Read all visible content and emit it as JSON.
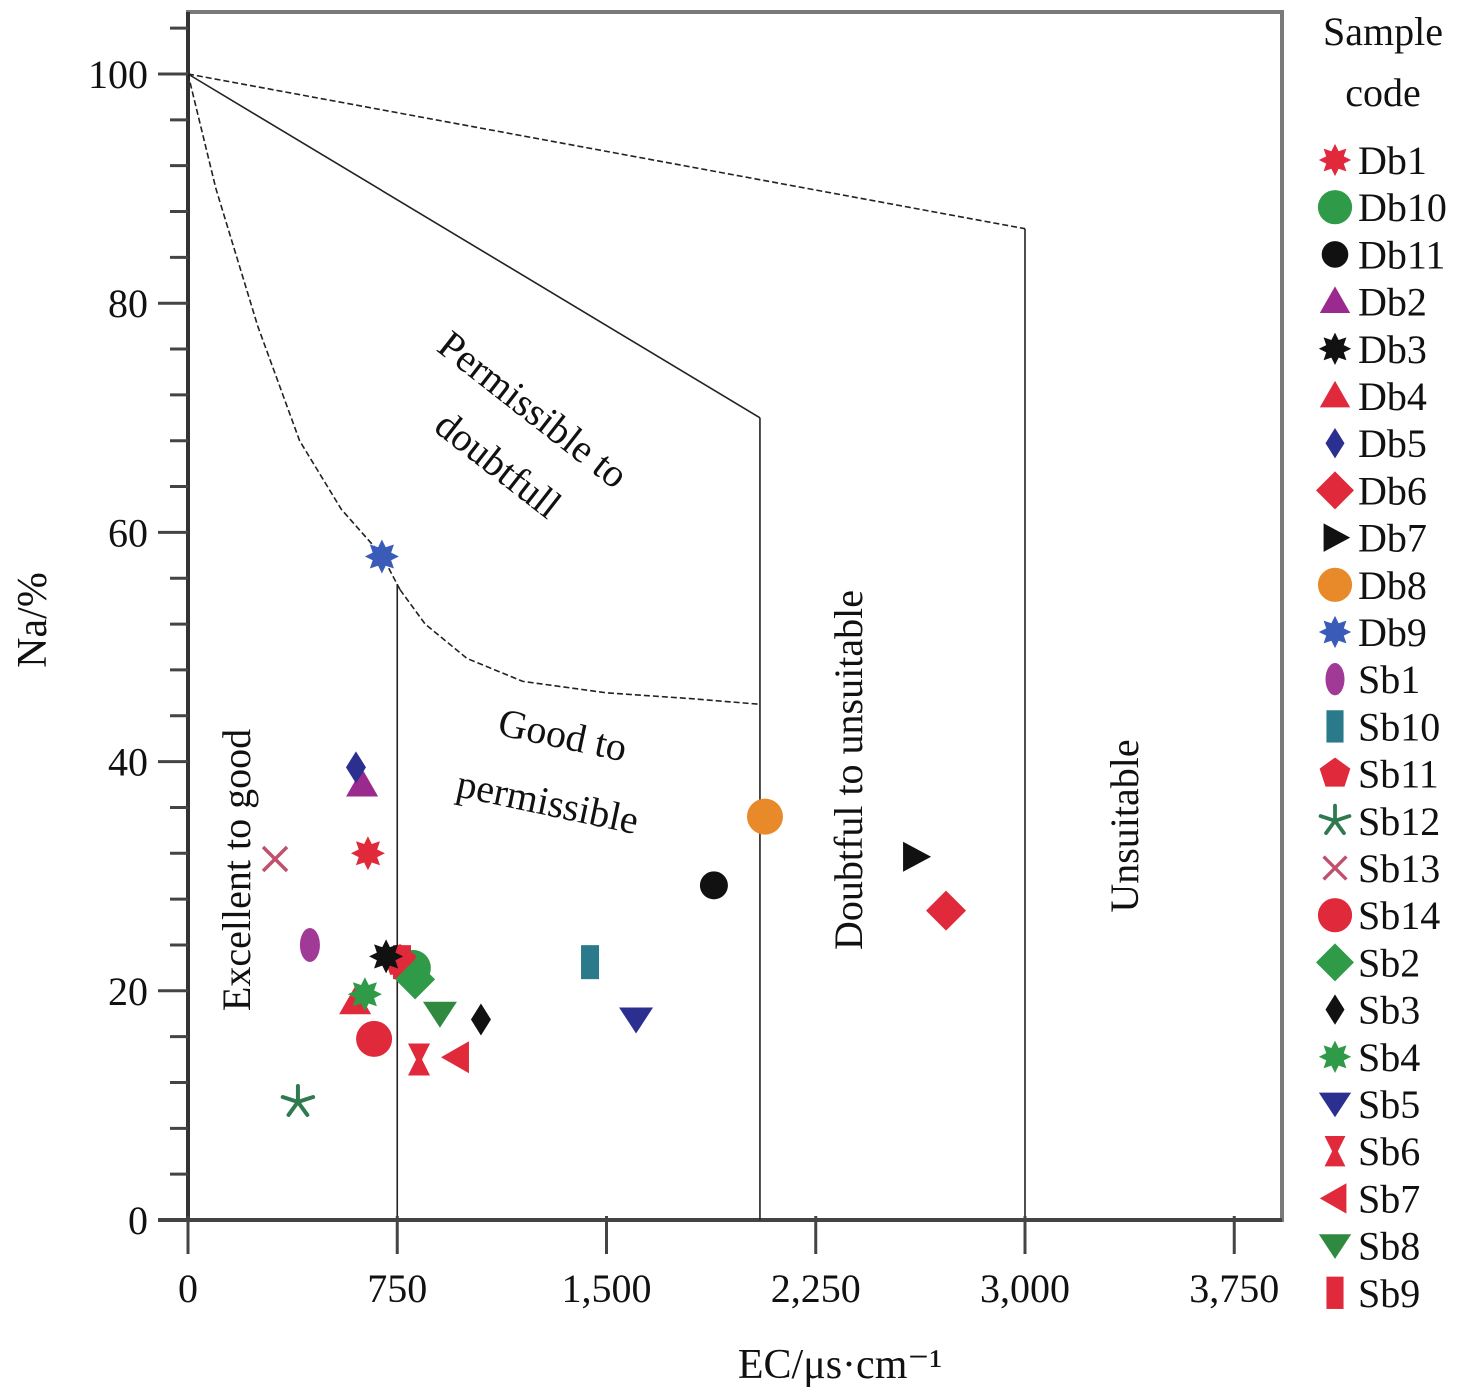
{
  "chart_data": {
    "type": "scatter",
    "title": "",
    "xlabel": "EC/μs·cm⁻¹",
    "ylabel": "Na/%",
    "xlim": [
      0,
      3900
    ],
    "ylim": [
      0,
      105
    ],
    "x_ticks": [
      {
        "value": 0,
        "label": "0"
      },
      {
        "value": 750,
        "label": "750"
      },
      {
        "value": 1500,
        "label": "1,500"
      },
      {
        "value": 2250,
        "label": "2,250"
      },
      {
        "value": 3000,
        "label": "3,000"
      },
      {
        "value": 3750,
        "label": "3,750"
      }
    ],
    "y_ticks": [
      {
        "value": 0,
        "label": "0"
      },
      {
        "value": 20,
        "label": "20"
      },
      {
        "value": 40,
        "label": "40"
      },
      {
        "value": 60,
        "label": "60"
      },
      {
        "value": 80,
        "label": "80"
      },
      {
        "value": 100,
        "label": "100"
      }
    ],
    "y_minor_step": 4,
    "grid": false,
    "legend": {
      "title_line1": "Sample",
      "title_line2": "code",
      "placement": "right"
    },
    "regions": [
      {
        "name": "Excellent to good",
        "x": 250,
        "y": 32,
        "rotate": -90
      },
      {
        "name": "Good to",
        "x": 1280,
        "y": 39,
        "rotate": 12
      },
      {
        "name": "permissible",
        "x": 1280,
        "y": 33,
        "rotate": 12
      },
      {
        "name": "Permissible to",
        "x": 1150,
        "y": 70,
        "rotate": 38
      },
      {
        "name": "doubtfull",
        "x": 1100,
        "y": 62,
        "rotate": 38
      },
      {
        "name": "Doubtful to unsuitable",
        "x": 2350,
        "y": 38,
        "rotate": -90
      },
      {
        "name": "Unsuitable",
        "x": 3350,
        "y": 33,
        "rotate": -90
      }
    ],
    "boundaries": [
      {
        "name": "excellent-good-curve",
        "dashed": true,
        "points": [
          [
            0,
            100
          ],
          [
            100,
            90
          ],
          [
            250,
            78
          ],
          [
            400,
            68
          ],
          [
            550,
            62
          ],
          [
            695,
            58
          ],
          [
            760,
            55
          ]
        ]
      },
      {
        "name": "good-permissible-curve",
        "dashed": true,
        "points": [
          [
            760,
            55
          ],
          [
            850,
            52
          ],
          [
            1000,
            49
          ],
          [
            1200,
            47
          ],
          [
            1500,
            46
          ],
          [
            1800,
            45.5
          ],
          [
            2050,
            45
          ]
        ]
      },
      {
        "name": "permissible-doubtful-line",
        "dashed": false,
        "points": [
          [
            0,
            100
          ],
          [
            2050,
            70
          ]
        ]
      },
      {
        "name": "doubtful-unsuitable-line",
        "dashed": true,
        "points": [
          [
            0,
            100
          ],
          [
            3000,
            86.5
          ]
        ]
      },
      {
        "name": "vline-750",
        "dashed": false,
        "points": [
          [
            750,
            0
          ],
          [
            750,
            55.5
          ]
        ]
      },
      {
        "name": "vline-2050",
        "dashed": false,
        "points": [
          [
            2050,
            0
          ],
          [
            2050,
            70
          ]
        ]
      },
      {
        "name": "vline-3000",
        "dashed": false,
        "points": [
          [
            3000,
            0
          ],
          [
            3000,
            86.5
          ]
        ]
      }
    ],
    "series": [
      {
        "name": "Db1",
        "marker": "star8",
        "color": "#e02a3c",
        "x": 645,
        "y": 32.0
      },
      {
        "name": "Db10",
        "marker": "circle",
        "color": "#2f9a48",
        "x": 806,
        "y": 22.0
      },
      {
        "name": "Db11",
        "marker": "circle-sm",
        "color": "#111111",
        "x": 1885,
        "y": 29.2
      },
      {
        "name": "Db2",
        "marker": "triangle",
        "color": "#9b2a8e",
        "x": 624,
        "y": 38.0
      },
      {
        "name": "Db3",
        "marker": "star8",
        "color": "#111111",
        "x": 710,
        "y": 23.0
      },
      {
        "name": "Db4",
        "marker": "triangle",
        "color": "#e02a3c",
        "x": 599,
        "y": 19.0
      },
      {
        "name": "Db5",
        "marker": "diamond-thin",
        "color": "#2b2f8f",
        "x": 602,
        "y": 39.5
      },
      {
        "name": "Db6",
        "marker": "diamond",
        "color": "#e02a3c",
        "x": 2717,
        "y": 27.0
      },
      {
        "name": "Db7",
        "marker": "triangle-right",
        "color": "#111111",
        "x": 2606,
        "y": 31.7
      },
      {
        "name": "Db8",
        "marker": "circle",
        "color": "#e8892a",
        "x": 2068,
        "y": 35.2
      },
      {
        "name": "Db9",
        "marker": "star8",
        "color": "#3a5bb8",
        "x": 695,
        "y": 57.9
      },
      {
        "name": "Sb1",
        "marker": "ellipse",
        "color": "#a03a96",
        "x": 437,
        "y": 24.0
      },
      {
        "name": "Sb10",
        "marker": "rect-tall",
        "color": "#2a7a8c",
        "x": 1441,
        "y": 22.5
      },
      {
        "name": "Sb11",
        "marker": "pentagon",
        "color": "#e02a3c",
        "x": 760,
        "y": 22.6
      },
      {
        "name": "Sb12",
        "marker": "asterisk",
        "color": "#2f7a50",
        "x": 394,
        "y": 10.3
      },
      {
        "name": "Sb13",
        "marker": "cross",
        "color": "#c0506e",
        "x": 312,
        "y": 31.5
      },
      {
        "name": "Sb14",
        "marker": "circle",
        "color": "#e02a3c",
        "x": 667,
        "y": 15.8
      },
      {
        "name": "Sb2",
        "marker": "diamond",
        "color": "#2f9a48",
        "x": 814,
        "y": 21.0
      },
      {
        "name": "Sb3",
        "marker": "diamond-thin",
        "color": "#111111",
        "x": 1050,
        "y": 17.5
      },
      {
        "name": "Sb4",
        "marker": "star8",
        "color": "#2f9a48",
        "x": 634,
        "y": 19.7
      },
      {
        "name": "Sb5",
        "marker": "triangle-down",
        "color": "#2b2f8f",
        "x": 1606,
        "y": 17.5
      },
      {
        "name": "Sb6",
        "marker": "hourglass",
        "color": "#e02a3c",
        "x": 828,
        "y": 14.0
      },
      {
        "name": "Sb7",
        "marker": "triangle-left",
        "color": "#e02a3c",
        "x": 964,
        "y": 14.2
      },
      {
        "name": "Sb8",
        "marker": "triangle-down",
        "color": "#2f8a40",
        "x": 903,
        "y": 18.0
      },
      {
        "name": "Sb9",
        "marker": "rect-tall",
        "color": "#e02a3c",
        "x": 767,
        "y": 22.5
      }
    ]
  }
}
